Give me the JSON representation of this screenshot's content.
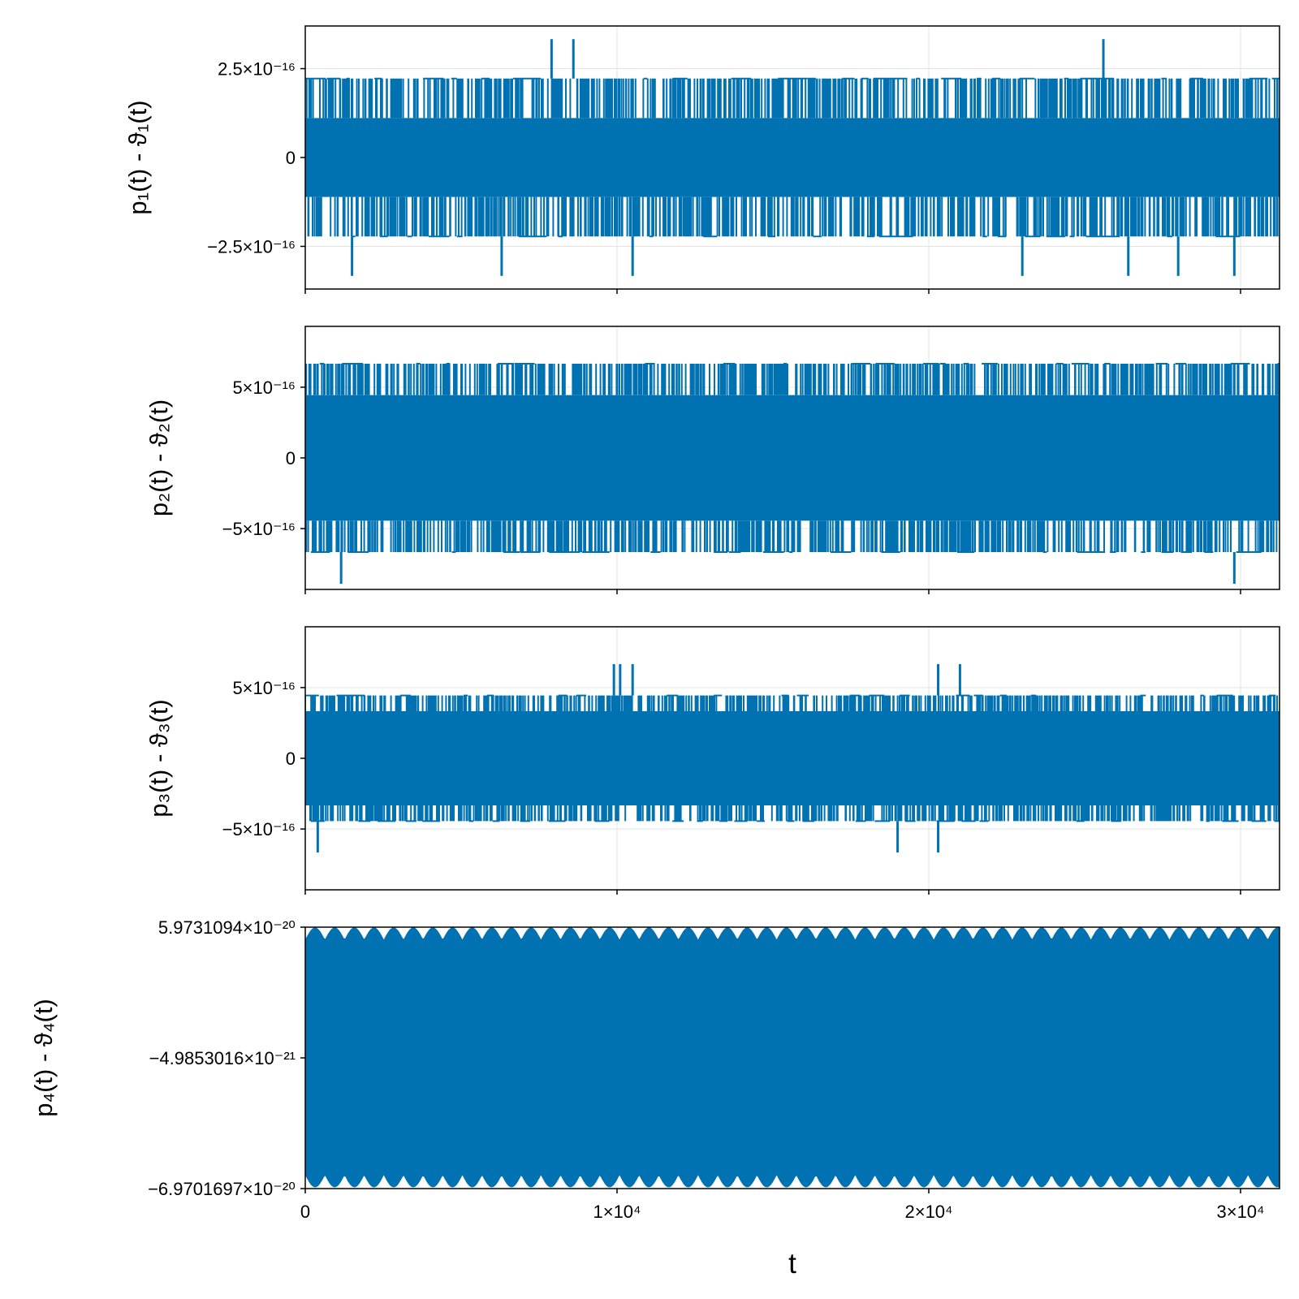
{
  "colors": {
    "series": "#0072b2",
    "grid": "#e3e3e3",
    "frame": "#000000",
    "background": "#ffffff"
  },
  "x_label": "t",
  "chart_data": [
    {
      "type": "line",
      "ylabel": "p₁(t) - ϑ₁(t)",
      "xlim": [
        0,
        31250
      ],
      "ylim": [
        -3.7e-16,
        3.7e-16
      ],
      "yticks": [
        {
          "value": -2.5e-16,
          "label": "−2.5×10⁻¹⁶"
        },
        {
          "value": 0,
          "label": "0"
        },
        {
          "value": 2.5e-16,
          "label": "2.5×10⁻¹⁶"
        }
      ],
      "xticks": [
        0,
        10000,
        20000,
        30000
      ],
      "show_xtick_labels": false,
      "grid": true,
      "series": [
        {
          "x_range": [
            0,
            31250
          ],
          "levels": [
            -1.11e-16,
            1.11e-16
          ],
          "outer_levels": [
            -2.22e-16,
            2.22e-16
          ],
          "extreme_levels": [
            -3.33e-16,
            3.33e-16
          ],
          "spike_up_x": [
            7900,
            8600,
            25600
          ],
          "spike_down_x": [
            1500,
            6300,
            10500,
            23000,
            26400,
            28000,
            29800
          ]
        }
      ]
    },
    {
      "type": "line",
      "ylabel": "p₂(t) - ϑ₂(t)",
      "xlim": [
        0,
        31250
      ],
      "ylim": [
        -9.3e-16,
        9.3e-16
      ],
      "yticks": [
        {
          "value": -5e-16,
          "label": "−5×10⁻¹⁶"
        },
        {
          "value": 0,
          "label": "0"
        },
        {
          "value": 5e-16,
          "label": "5×10⁻¹⁶"
        }
      ],
      "xticks": [
        0,
        10000,
        20000,
        30000
      ],
      "show_xtick_labels": false,
      "grid": true,
      "series": [
        {
          "x_range": [
            0,
            31250
          ],
          "levels": [
            -4.44e-16,
            4.44e-16
          ],
          "outer_levels": [
            -6.66e-16,
            6.66e-16
          ],
          "extreme_levels": [
            -8.9e-16,
            6.66e-16
          ],
          "spike_up_x": [],
          "spike_down_x": [
            1150,
            29800
          ]
        }
      ]
    },
    {
      "type": "line",
      "ylabel": "p₃(t) - ϑ₃(t)",
      "xlim": [
        0,
        31250
      ],
      "ylim": [
        -9.3e-16,
        9.3e-16
      ],
      "yticks": [
        {
          "value": -5e-16,
          "label": "−5×10⁻¹⁶"
        },
        {
          "value": 0,
          "label": "0"
        },
        {
          "value": 5e-16,
          "label": "5×10⁻¹⁶"
        }
      ],
      "xticks": [
        0,
        10000,
        20000,
        30000
      ],
      "show_xtick_labels": false,
      "grid": true,
      "series": [
        {
          "x_range": [
            0,
            31250
          ],
          "levels": [
            -3.33e-16,
            3.33e-16
          ],
          "outer_levels": [
            -4.44e-16,
            4.44e-16
          ],
          "extreme_levels": [
            -6.66e-16,
            6.66e-16
          ],
          "spike_up_x": [
            9900,
            10100,
            10500,
            20300,
            21000
          ],
          "spike_down_x": [
            400,
            19000,
            20300
          ]
        }
      ]
    },
    {
      "type": "line",
      "ylabel": "p₄(t) - ϑ₄(t)",
      "xlim": [
        0,
        31250
      ],
      "ylim": [
        -6.9701697e-20,
        5.9731094e-20
      ],
      "yticks": [
        {
          "value": -6.9701697e-20,
          "label": "−6.9701697×10⁻²⁰"
        },
        {
          "value": -4.9853016e-21,
          "label": "−4.9853016×10⁻²¹"
        },
        {
          "value": 5.9731094e-20,
          "label": "5.9731094×10⁻²⁰"
        }
      ],
      "xticks": [
        0,
        10000,
        20000,
        30000
      ],
      "xtick_labels": [
        "0",
        "1×10⁴",
        "2×10⁴",
        "3×10⁴"
      ],
      "show_xtick_labels": true,
      "grid": true,
      "series": [
        {
          "x_range": [
            0,
            31250
          ],
          "band": [
            -6.55e-20,
            5.6e-20
          ],
          "scallop_period": 630,
          "scallop_depth": 1.5e-21
        }
      ]
    }
  ]
}
